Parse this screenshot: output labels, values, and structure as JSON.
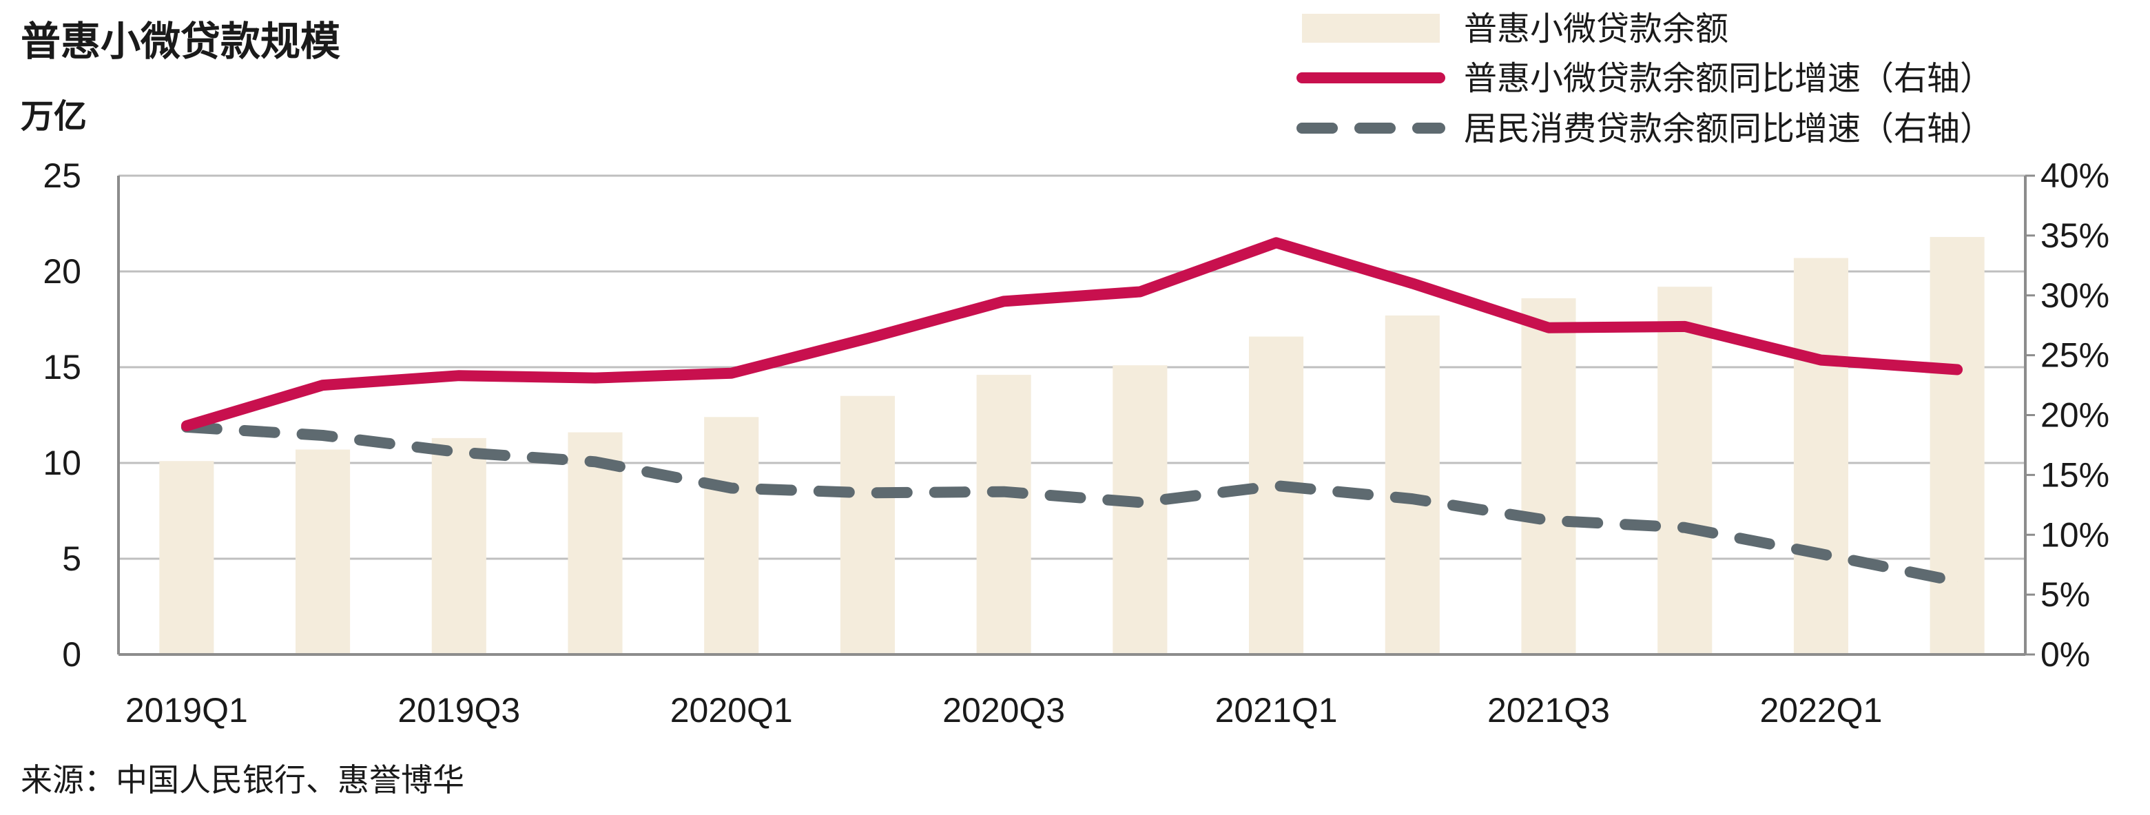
{
  "title": "普惠小微贷款规模",
  "left_unit": "万亿",
  "source": "来源：中国人民银行、惠誉博华",
  "colors": {
    "bar": "#f4ecdc",
    "inclusive_line": "#c8104e",
    "consumer_line": "#5e6a70",
    "grid": "#bfbfbf",
    "axis": "#8c8c8c"
  },
  "chart_data": {
    "type": "bar+line",
    "categories": [
      "2019Q1",
      "2019Q2",
      "2019Q3",
      "2019Q4",
      "2020Q1",
      "2020Q2",
      "2020Q3",
      "2020Q4",
      "2021Q1",
      "2021Q2",
      "2021Q3",
      "2021Q4",
      "2022Q1",
      "2022Q2"
    ],
    "x_tick_labels": [
      "2019Q1",
      "2019Q3",
      "2020Q1",
      "2020Q3",
      "2021Q1",
      "2021Q3",
      "2022Q1"
    ],
    "y_left": {
      "min": 0,
      "max": 25,
      "step": 5,
      "ticks": [
        "0",
        "5",
        "10",
        "15",
        "20",
        "25"
      ]
    },
    "y_right": {
      "min": 0,
      "max": 40,
      "step": 5,
      "ticks": [
        "0%",
        "5%",
        "10%",
        "15%",
        "20%",
        "25%",
        "30%",
        "35%",
        "40%"
      ]
    },
    "grid": true,
    "legend_position": "top-right",
    "series": [
      {
        "name": "普惠小微贷款余额",
        "type": "bar",
        "axis": "left",
        "values": [
          10.1,
          10.7,
          11.3,
          11.6,
          12.4,
          13.5,
          14.6,
          15.1,
          16.6,
          17.7,
          18.6,
          19.2,
          20.7,
          21.8
        ]
      },
      {
        "name": "普惠小微贷款余额同比增速（右轴）",
        "type": "line",
        "style": "solid",
        "axis": "right",
        "values": [
          19.1,
          22.5,
          23.3,
          23.1,
          23.5,
          26.4,
          29.5,
          30.3,
          34.4,
          31.0,
          27.3,
          27.4,
          24.6,
          23.8
        ]
      },
      {
        "name": "居民消费贷款余额同比增速（右轴）",
        "type": "line",
        "style": "dashed",
        "axis": "right",
        "values": [
          19.0,
          18.3,
          16.9,
          16.1,
          13.9,
          13.5,
          13.6,
          12.7,
          14.1,
          13.0,
          11.2,
          10.6,
          8.4,
          6.1
        ]
      }
    ]
  }
}
